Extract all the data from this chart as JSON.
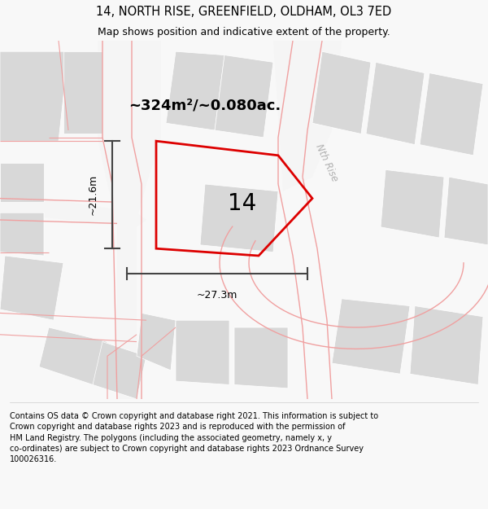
{
  "title": "14, NORTH RISE, GREENFIELD, OLDHAM, OL3 7ED",
  "subtitle": "Map shows position and indicative extent of the property.",
  "footer": "Contains OS data © Crown copyright and database right 2021. This information is subject to Crown copyright and database rights 2023 and is reproduced with the permission of HM Land Registry. The polygons (including the associated geometry, namely x, y co-ordinates) are subject to Crown copyright and database rights 2023 Ordnance Survey 100026316.",
  "area_label": "~324m²/~0.080ac.",
  "number_label": "14",
  "dim_width": "~27.3m",
  "dim_height": "~21.6m",
  "street_label": "Nth Rise",
  "bg_color": "#f8f8f8",
  "map_bg": "#ffffff",
  "plot_color": "#dd0000",
  "building_color": "#d8d8d8",
  "road_outline_color": "#f0a0a0",
  "road_fill_color": "#f5f5f5",
  "dim_color": "#444444",
  "street_label_color": "#b0b0b0",
  "figsize": [
    6.0,
    6.25
  ],
  "dpi": 100,
  "title_fontsize": 10.5,
  "subtitle_fontsize": 9.0,
  "footer_fontsize": 7.0
}
